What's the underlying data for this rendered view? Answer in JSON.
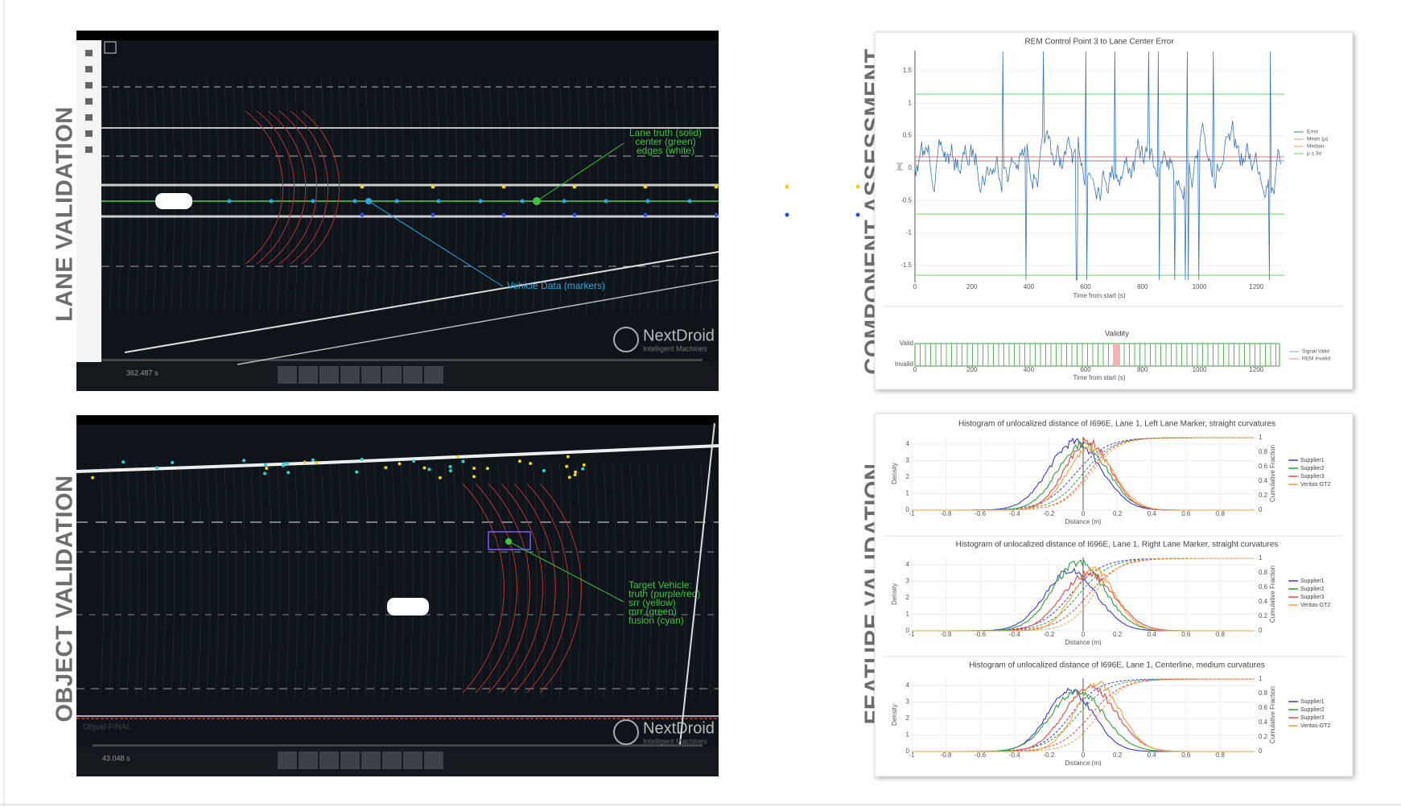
{
  "sections": {
    "lane": "LANE VALIDATION",
    "object": "OBJECT VALIDATION",
    "component": "COMPONENT ASSESSMENT",
    "feature": "FEATURE VALIDATION"
  },
  "lane_view": {
    "annotations": [
      "Lane truth (solid)",
      "center (green)",
      "edges (white)"
    ],
    "vehicle_label": "Vehicle Data (markers)",
    "logo": "NextDroid",
    "logo_sub": "Intelligent Machines",
    "time": "362.487 s"
  },
  "object_view": {
    "annotations": [
      "Target Vehicle:",
      "truth (purple/red)",
      "srr (yellow)",
      "mrr (green)",
      "fusion (cyan)"
    ],
    "watermark": "Objval-FINAL",
    "logo": "NextDroid",
    "logo_sub": "Intelligent Machines",
    "time": "43.048 s"
  },
  "error_plot": {
    "title": "REM Control Point 3 to Lane Center Error",
    "ylabel": "[m]",
    "yticks": [
      "1.5",
      "1",
      "0.5",
      "0",
      "-0.5",
      "-1",
      "-1.5"
    ],
    "xticks": [
      "0",
      "200",
      "400",
      "600",
      "800",
      "1000",
      "1200"
    ],
    "xlabel": "Time from start (s)",
    "legend": [
      "Error",
      "Mean (μ)",
      "Median",
      "μ ± 3σ"
    ]
  },
  "validity_plot": {
    "title": "Validity",
    "ylabels": [
      "Valid",
      "Invalid"
    ],
    "xticks": [
      "0",
      "200",
      "400",
      "600",
      "800",
      "1000",
      "1200"
    ],
    "xlabel": "Time from start (s)",
    "legend": [
      "Signal Valid",
      "REM Invalid"
    ]
  },
  "histograms": [
    {
      "title": "Histogram of unlocalized distance of I696E, Lane 1, Left Lane Marker, straight curvatures"
    },
    {
      "title": "Histogram of unlocalized distance of I696E, Lane 1, Right Lane Marker, straight curvatures"
    },
    {
      "title": "Histogram of unlocalized distance of I696E, Lane 1, Centerline, medium curvatures"
    }
  ],
  "histogram_axes": {
    "xticks": [
      "-1",
      "-0.8",
      "-0.6",
      "-0.4",
      "-0.2",
      "0",
      "0.2",
      "0.4",
      "0.6",
      "0.8"
    ],
    "yticks": [
      "0",
      "1",
      "2",
      "3",
      "4"
    ],
    "y2ticks": [
      "0",
      "0.2",
      "0.4",
      "0.6",
      "0.8",
      "1"
    ],
    "xlabel": "Distance (m)",
    "ylabel": "Density",
    "y2label": "Cumulative Fraction",
    "legend": [
      "Supplier1",
      "Supplier2",
      "Supplier3",
      "Veritas-GT2"
    ]
  }
}
